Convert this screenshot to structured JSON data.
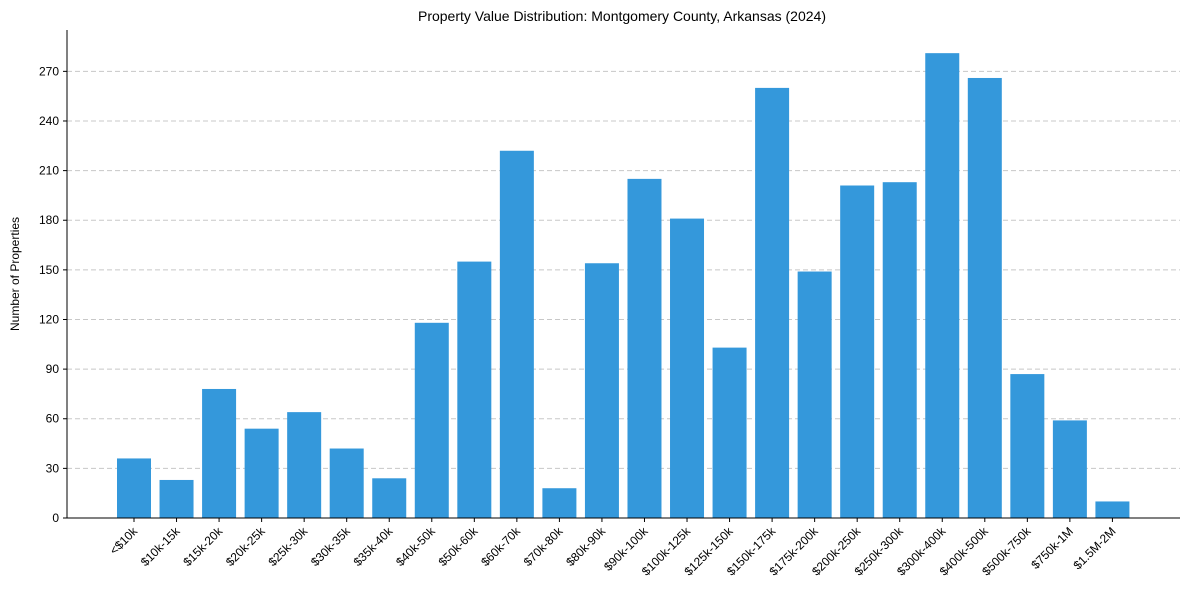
{
  "chart_data": {
    "type": "bar",
    "title": "Property Value Distribution: Montgomery County, Arkansas (2024)",
    "xlabel": "",
    "ylabel": "Number of Properties",
    "ylim": [
      0,
      295
    ],
    "yticks": [
      0,
      30,
      60,
      90,
      120,
      150,
      180,
      210,
      240,
      270
    ],
    "grid": "y-dashed",
    "categories": [
      "<$10k",
      "$10k-15k",
      "$15k-20k",
      "$20k-25k",
      "$25k-30k",
      "$30k-35k",
      "$35k-40k",
      "$40k-50k",
      "$50k-60k",
      "$60k-70k",
      "$70k-80k",
      "$80k-90k",
      "$90k-100k",
      "$100k-125k",
      "$125k-150k",
      "$150k-175k",
      "$175k-200k",
      "$200k-250k",
      "$250k-300k",
      "$300k-400k",
      "$400k-500k",
      "$500k-750k",
      "$750k-1M",
      "$1.5M-2M"
    ],
    "values": [
      36,
      23,
      78,
      54,
      64,
      42,
      24,
      118,
      155,
      222,
      18,
      154,
      205,
      181,
      103,
      260,
      149,
      201,
      203,
      281,
      266,
      87,
      59,
      10
    ],
    "colors": {
      "bar": "#3498db",
      "grid": "#c8c8c8",
      "axis": "#000000"
    }
  }
}
